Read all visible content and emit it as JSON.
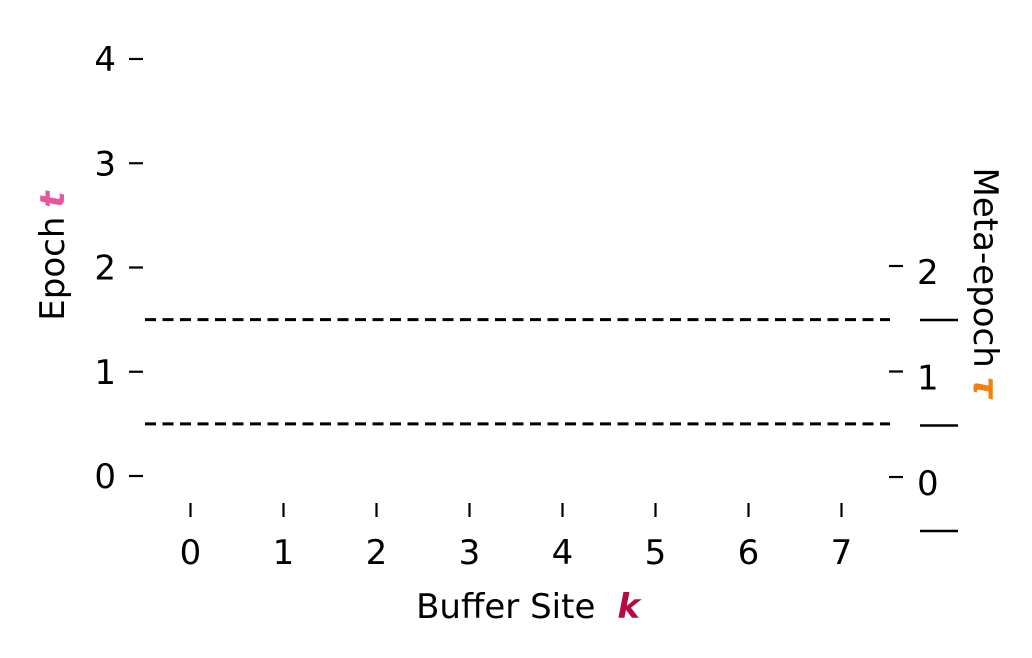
{
  "chart_data": {
    "type": "line",
    "xlabel": "Buffer Site",
    "xlabel_symbol": "k",
    "ylabel": "Epoch",
    "ylabel_symbol": "t",
    "y2label": "Meta-epoch",
    "y2label_symbol": "τ",
    "x_ticks": [
      0,
      1,
      2,
      3,
      4,
      5,
      6,
      7
    ],
    "xlim": [
      -0.5,
      7.5
    ],
    "y_ticks": [
      0,
      1,
      2,
      3,
      4
    ],
    "ylim": [
      0,
      4
    ],
    "y2_ticks": [
      0,
      1,
      2
    ],
    "y2_tick_positions": [
      0,
      1,
      2
    ],
    "meta_epoch_boundaries": [
      -0.5,
      0.5,
      1.5
    ],
    "horizontal_reference_lines": [
      0.5,
      1.5
    ],
    "reference_line_style": "dashed",
    "grid": false,
    "symbol_colors": {
      "k": "#b5093f",
      "t": "#e8559a",
      "tau": "#f57f0e"
    }
  }
}
